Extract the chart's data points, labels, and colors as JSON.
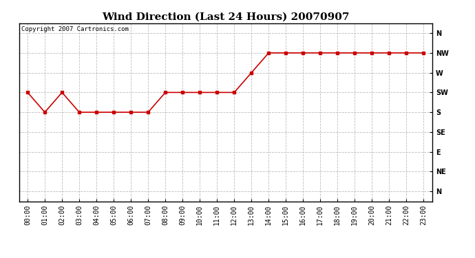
{
  "title": "Wind Direction (Last 24 Hours) 20070907",
  "copyright": "Copyright 2007 Cartronics.com",
  "hours": [
    0,
    1,
    2,
    3,
    4,
    5,
    6,
    7,
    8,
    9,
    10,
    11,
    12,
    13,
    14,
    15,
    16,
    17,
    18,
    19,
    20,
    21,
    22,
    23
  ],
  "hour_labels": [
    "00:00",
    "01:00",
    "02:00",
    "03:00",
    "04:00",
    "05:00",
    "06:00",
    "07:00",
    "08:00",
    "09:00",
    "10:00",
    "11:00",
    "12:00",
    "13:00",
    "14:00",
    "15:00",
    "16:00",
    "17:00",
    "18:00",
    "19:00",
    "20:00",
    "21:00",
    "22:00",
    "23:00"
  ],
  "wind_values": [
    5,
    4,
    5,
    4,
    4,
    4,
    4,
    4,
    5,
    5,
    5,
    5,
    5,
    6,
    7,
    7,
    7,
    7,
    7,
    7,
    7,
    7,
    7,
    7
  ],
  "ytick_positions": [
    8,
    7,
    6,
    5,
    4,
    3,
    2,
    1,
    0
  ],
  "ytick_labels": [
    "N",
    "NW",
    "W",
    "SW",
    "S",
    "SE",
    "E",
    "NE",
    "N"
  ],
  "line_color": "#cc0000",
  "marker": "s",
  "marker_size": 3,
  "background_color": "#ffffff",
  "plot_bg_color": "#ffffff",
  "grid_color": "#bbbbbb",
  "title_fontsize": 11,
  "tick_fontsize": 7,
  "copyright_fontsize": 6.5,
  "ylim_min": -0.5,
  "ylim_max": 8.5
}
